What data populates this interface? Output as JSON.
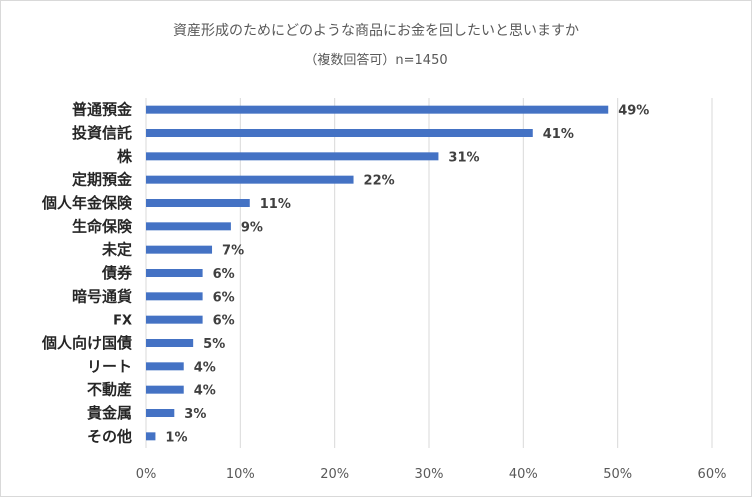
{
  "chart_data": {
    "type": "bar",
    "orientation": "horizontal",
    "title": "資産形成のためにどのような商品にお金を回したいと思いますか",
    "subtitle": "（複数回答可）n=1450",
    "categories": [
      "普通預金",
      "投資信託",
      "株",
      "定期預金",
      "個人年金保険",
      "生命保険",
      "未定",
      "債券",
      "暗号通貨",
      "FX",
      "個人向け国債",
      "リート",
      "不動産",
      "貴金属",
      "その他"
    ],
    "values": [
      49,
      41,
      31,
      22,
      11,
      9,
      7,
      6,
      6,
      6,
      5,
      4,
      4,
      3,
      1
    ],
    "value_labels": [
      "49%",
      "41%",
      "31%",
      "22%",
      "11%",
      "9%",
      "7%",
      "6%",
      "6%",
      "6%",
      "5%",
      "4%",
      "4%",
      "3%",
      "1%"
    ],
    "xlim": [
      0,
      60
    ],
    "xticks": [
      "0%",
      "10%",
      "20%",
      "30%",
      "40%",
      "50%",
      "60%"
    ],
    "grid": true,
    "bar_color": "#4472c4"
  }
}
